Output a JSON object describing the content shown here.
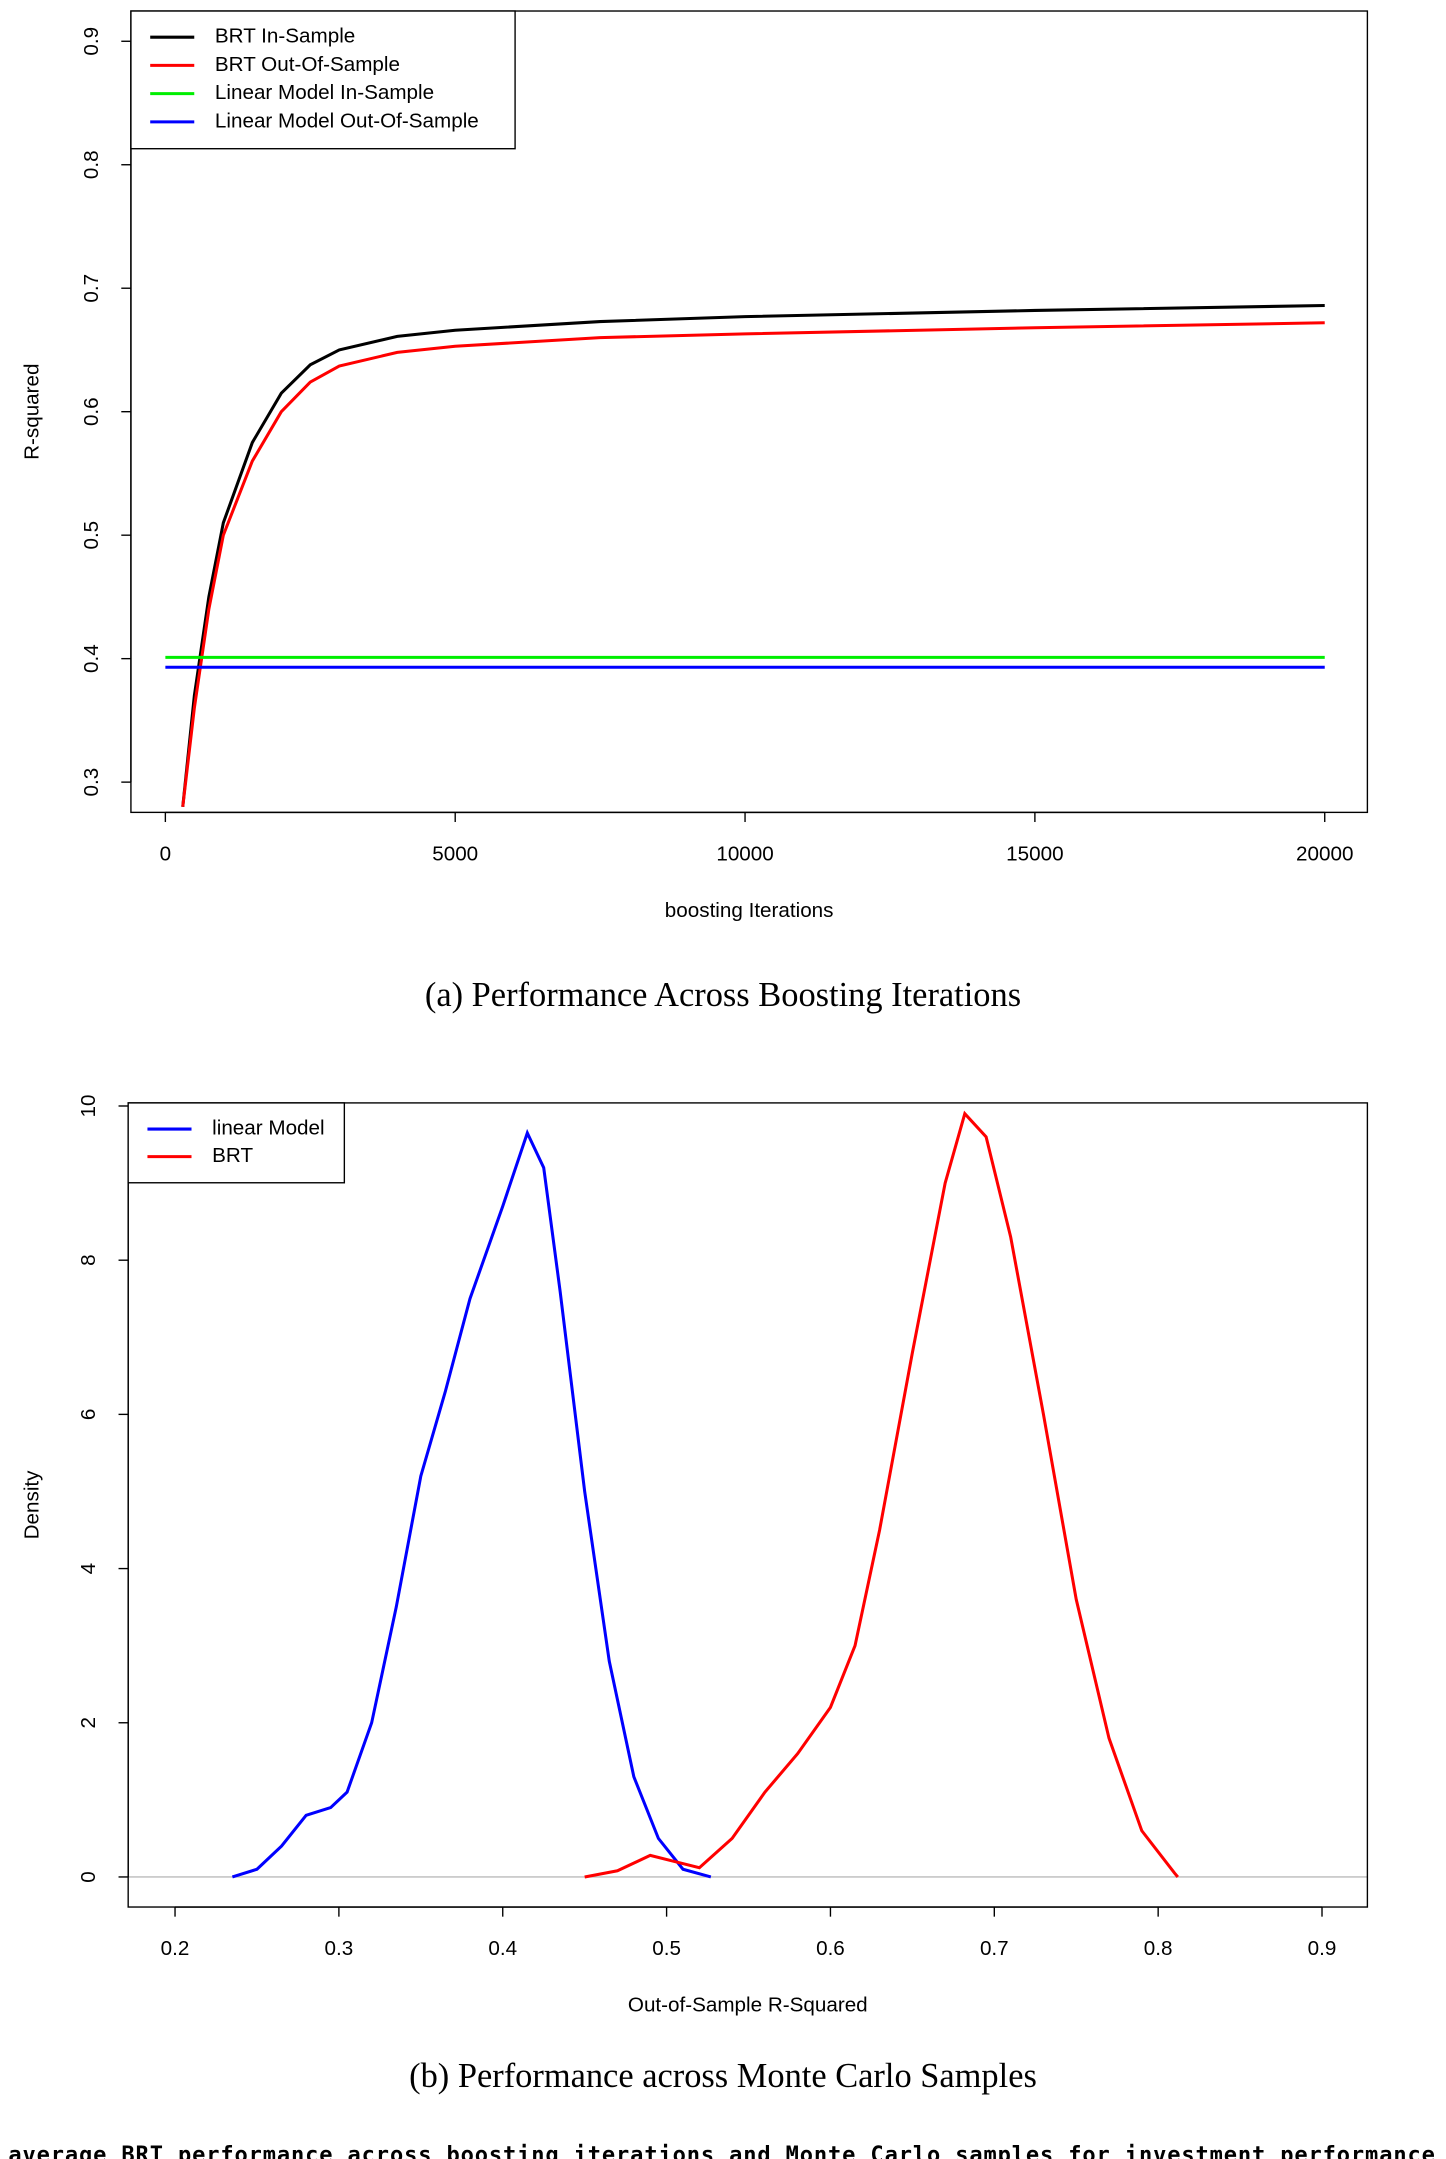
{
  "chart_data": [
    {
      "type": "line",
      "caption": "(a) Performance Across Boosting Iterations",
      "xlabel": "boosting Iterations",
      "ylabel": "R-squared",
      "xlim": [
        -594,
        20736
      ],
      "ylim": [
        0.2755,
        0.9245
      ],
      "xticks": [
        0,
        5000,
        10000,
        15000,
        20000
      ],
      "yticks": [
        0.3,
        0.4,
        0.5,
        0.6,
        0.7,
        0.8,
        0.9
      ],
      "legend": "topleft",
      "series": [
        {
          "name": "BRT In-Sample",
          "color": "#000000",
          "x": [
            300,
            500,
            750,
            1000,
            1500,
            2000,
            2500,
            3000,
            4000,
            5000,
            7500,
            10000,
            15000,
            20000
          ],
          "values": [
            0.28,
            0.37,
            0.45,
            0.51,
            0.575,
            0.615,
            0.638,
            0.65,
            0.661,
            0.666,
            0.673,
            0.677,
            0.682,
            0.686
          ]
        },
        {
          "name": "BRT Out-Of-Sample",
          "color": "#ff0000",
          "x": [
            300,
            500,
            750,
            1000,
            1500,
            2000,
            2500,
            3000,
            4000,
            5000,
            7500,
            10000,
            15000,
            20000
          ],
          "values": [
            0.28,
            0.36,
            0.44,
            0.5,
            0.56,
            0.6,
            0.624,
            0.637,
            0.648,
            0.653,
            0.66,
            0.663,
            0.668,
            0.672
          ]
        },
        {
          "name": "Linear Model In-Sample",
          "color": "#00ee00",
          "x": [
            0,
            20000
          ],
          "values": [
            0.401,
            0.401
          ]
        },
        {
          "name": "Linear Model Out-Of-Sample",
          "color": "#0000ff",
          "x": [
            0,
            20000
          ],
          "values": [
            0.393,
            0.393
          ]
        }
      ]
    },
    {
      "type": "line",
      "caption": "(b) Performance across Monte Carlo Samples",
      "xlabel": "Out-of-Sample R-Squared",
      "ylabel": "Density",
      "xlim": [
        0.1714,
        0.9277
      ],
      "ylim": [
        -0.39,
        10.04
      ],
      "xticks": [
        0.2,
        0.3,
        0.4,
        0.5,
        0.6,
        0.7,
        0.8,
        0.9
      ],
      "yticks": [
        0,
        2,
        4,
        6,
        8,
        10
      ],
      "legend": "topleft",
      "series": [
        {
          "name": "linear Model",
          "color": "#0000ff",
          "x": [
            0.235,
            0.25,
            0.265,
            0.28,
            0.295,
            0.305,
            0.32,
            0.335,
            0.35,
            0.365,
            0.38,
            0.4,
            0.415,
            0.425,
            0.435,
            0.45,
            0.465,
            0.48,
            0.495,
            0.51,
            0.527
          ],
          "values": [
            0,
            0.1,
            0.4,
            0.8,
            0.9,
            1.1,
            2.0,
            3.5,
            5.2,
            6.3,
            7.5,
            8.7,
            9.65,
            9.2,
            7.6,
            5.0,
            2.8,
            1.3,
            0.5,
            0.1,
            0
          ]
        },
        {
          "name": "BRT",
          "color": "#ff0000",
          "x": [
            0.45,
            0.47,
            0.49,
            0.505,
            0.52,
            0.54,
            0.56,
            0.58,
            0.6,
            0.615,
            0.63,
            0.65,
            0.67,
            0.682,
            0.695,
            0.71,
            0.73,
            0.75,
            0.77,
            0.79,
            0.81,
            0.812
          ],
          "values": [
            0,
            0.08,
            0.28,
            0.2,
            0.12,
            0.5,
            1.1,
            1.6,
            2.2,
            3.0,
            4.5,
            6.8,
            9.0,
            9.9,
            9.6,
            8.3,
            6.0,
            3.6,
            1.8,
            0.6,
            0.05,
            0
          ]
        }
      ]
    }
  ],
  "figure_caption": "average BRT performance across boosting iterations and Monte Carlo samples for investment performance"
}
